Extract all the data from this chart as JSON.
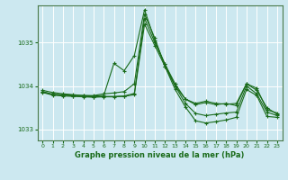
{
  "title": "Graphe pression niveau de la mer (hPa)",
  "bg_color": "#cce8f0",
  "grid_color": "#ffffff",
  "line_color": "#1a6b1a",
  "xlim": [
    -0.5,
    23.5
  ],
  "ylim": [
    1032.75,
    1035.85
  ],
  "yticks": [
    1033,
    1034,
    1035
  ],
  "xticks": [
    0,
    1,
    2,
    3,
    4,
    5,
    6,
    7,
    8,
    9,
    10,
    11,
    12,
    13,
    14,
    15,
    16,
    17,
    18,
    19,
    20,
    21,
    22,
    23
  ],
  "series": [
    {
      "x": [
        0,
        1,
        2,
        3,
        4,
        5,
        6,
        7,
        8,
        9,
        10,
        11,
        12,
        13,
        14,
        15,
        16,
        17,
        18,
        19,
        20,
        21,
        22,
        23
      ],
      "y": [
        1033.9,
        1033.85,
        1033.82,
        1033.8,
        1033.78,
        1033.78,
        1033.82,
        1033.84,
        1033.87,
        1034.05,
        1035.65,
        1035.1,
        1034.45,
        1034.0,
        1033.7,
        1033.6,
        1033.65,
        1033.6,
        1033.58,
        1033.6,
        1034.05,
        1033.95,
        1033.45,
        1033.38
      ]
    },
    {
      "x": [
        0,
        1,
        2,
        3,
        4,
        5,
        6,
        7,
        8,
        9,
        10,
        11,
        12,
        13,
        14,
        15,
        16,
        17,
        18,
        19,
        20,
        21,
        22,
        23
      ],
      "y": [
        1033.87,
        1033.81,
        1033.8,
        1033.79,
        1033.78,
        1033.77,
        1033.78,
        1034.52,
        1034.35,
        1034.7,
        1035.75,
        1035.05,
        1034.5,
        1034.05,
        1033.7,
        1033.57,
        1033.62,
        1033.57,
        1033.6,
        1033.55,
        1034.05,
        1033.9,
        1033.5,
        1033.35
      ]
    },
    {
      "x": [
        0,
        1,
        2,
        3,
        4,
        5,
        6,
        7,
        8,
        9,
        10,
        11,
        12,
        13,
        14,
        15,
        16,
        17,
        18,
        19,
        20,
        21,
        22,
        23
      ],
      "y": [
        1033.87,
        1033.8,
        1033.79,
        1033.77,
        1033.76,
        1033.75,
        1033.76,
        1033.76,
        1033.77,
        1033.83,
        1035.55,
        1035.0,
        1034.5,
        1034.0,
        1033.6,
        1033.37,
        1033.32,
        1033.35,
        1033.38,
        1033.4,
        1034.0,
        1033.82,
        1033.4,
        1033.32
      ]
    },
    {
      "x": [
        0,
        1,
        2,
        3,
        4,
        5,
        6,
        7,
        8,
        9,
        10,
        11,
        12,
        13,
        14,
        15,
        16,
        17,
        18,
        19,
        20,
        21,
        22,
        23
      ],
      "y": [
        1033.85,
        1033.79,
        1033.77,
        1033.76,
        1033.75,
        1033.74,
        1033.75,
        1033.75,
        1033.76,
        1033.8,
        1035.42,
        1034.93,
        1034.45,
        1033.92,
        1033.52,
        1033.2,
        1033.15,
        1033.18,
        1033.22,
        1033.28,
        1033.92,
        1033.78,
        1033.3,
        1033.28
      ]
    }
  ]
}
